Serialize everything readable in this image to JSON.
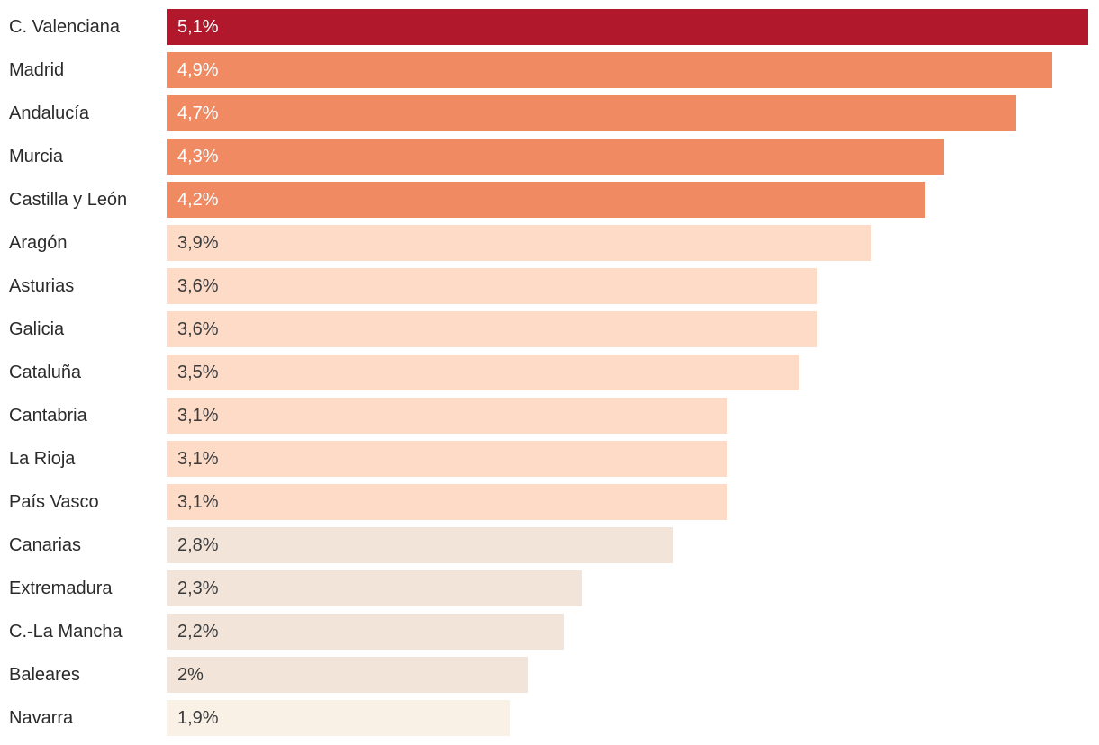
{
  "chart_data": {
    "type": "bar",
    "orientation": "horizontal",
    "title": "",
    "xlabel": "",
    "ylabel": "",
    "xlim": [
      0,
      5.16
    ],
    "grid": false,
    "legend": "none",
    "value_format": "percent-comma-decimal",
    "categories": [
      "C. Valenciana",
      "Madrid",
      "Andalucía",
      "Murcia",
      "Castilla y León",
      "Aragón",
      "Asturias",
      "Galicia",
      "Cataluña",
      "Cantabria",
      "La Rioja",
      "País Vasco",
      "Canarias",
      "Extremadura",
      "C.-La Mancha",
      "Baleares",
      "Navarra"
    ],
    "values": [
      5.1,
      4.9,
      4.7,
      4.3,
      4.2,
      3.9,
      3.6,
      3.6,
      3.5,
      3.1,
      3.1,
      3.1,
      2.8,
      2.3,
      2.2,
      2.0,
      1.9
    ],
    "rows": [
      {
        "label": "C. Valenciana",
        "value": 5.1,
        "value_label": "5,1%",
        "bar_color": "#B2182B",
        "value_color": "#FFFFFF"
      },
      {
        "label": "Madrid",
        "value": 4.9,
        "value_label": "4,9%",
        "bar_color": "#EF8A62",
        "value_color": "#FFFFFF"
      },
      {
        "label": "Andalucía",
        "value": 4.7,
        "value_label": "4,7%",
        "bar_color": "#EF8A62",
        "value_color": "#FFFFFF"
      },
      {
        "label": "Murcia",
        "value": 4.3,
        "value_label": "4,3%",
        "bar_color": "#EF8A62",
        "value_color": "#FFFFFF"
      },
      {
        "label": "Castilla y León",
        "value": 4.2,
        "value_label": "4,2%",
        "bar_color": "#EF8A62",
        "value_color": "#FFFFFF"
      },
      {
        "label": "Aragón",
        "value": 3.9,
        "value_label": "3,9%",
        "bar_color": "#FDDBC7",
        "value_color": "#3B3B3B"
      },
      {
        "label": "Asturias",
        "value": 3.6,
        "value_label": "3,6%",
        "bar_color": "#FDDBC7",
        "value_color": "#3B3B3B"
      },
      {
        "label": "Galicia",
        "value": 3.6,
        "value_label": "3,6%",
        "bar_color": "#FDDBC7",
        "value_color": "#3B3B3B"
      },
      {
        "label": "Cataluña",
        "value": 3.5,
        "value_label": "3,5%",
        "bar_color": "#FDDBC7",
        "value_color": "#3B3B3B"
      },
      {
        "label": "Cantabria",
        "value": 3.1,
        "value_label": "3,1%",
        "bar_color": "#FDDBC7",
        "value_color": "#3B3B3B"
      },
      {
        "label": "La Rioja",
        "value": 3.1,
        "value_label": "3,1%",
        "bar_color": "#FDDBC7",
        "value_color": "#3B3B3B"
      },
      {
        "label": "País Vasco",
        "value": 3.1,
        "value_label": "3,1%",
        "bar_color": "#FDDBC7",
        "value_color": "#3B3B3B"
      },
      {
        "label": "Canarias",
        "value": 2.8,
        "value_label": "2,8%",
        "bar_color": "#F2E4D9",
        "value_color": "#3B3B3B"
      },
      {
        "label": "Extremadura",
        "value": 2.3,
        "value_label": "2,3%",
        "bar_color": "#F2E4D9",
        "value_color": "#3B3B3B"
      },
      {
        "label": "C.-La Mancha",
        "value": 2.2,
        "value_label": "2,2%",
        "bar_color": "#F2E4D9",
        "value_color": "#3B3B3B"
      },
      {
        "label": "Baleares",
        "value": 2.0,
        "value_label": "2%",
        "bar_color": "#F2E4D9",
        "value_color": "#3B3B3B"
      },
      {
        "label": "Navarra",
        "value": 1.9,
        "value_label": "1,9%",
        "bar_color": "#FAF1E6",
        "value_color": "#3B3B3B"
      }
    ]
  },
  "colors": {
    "background": "#FFFFFF",
    "label_text": "#2B2B2B",
    "bar_step_1": "#B2182B",
    "bar_step_2": "#EF8A62",
    "bar_step_3": "#FDDBC7",
    "bar_step_4": "#F2E4D9",
    "bar_step_5": "#FAF1E6"
  }
}
